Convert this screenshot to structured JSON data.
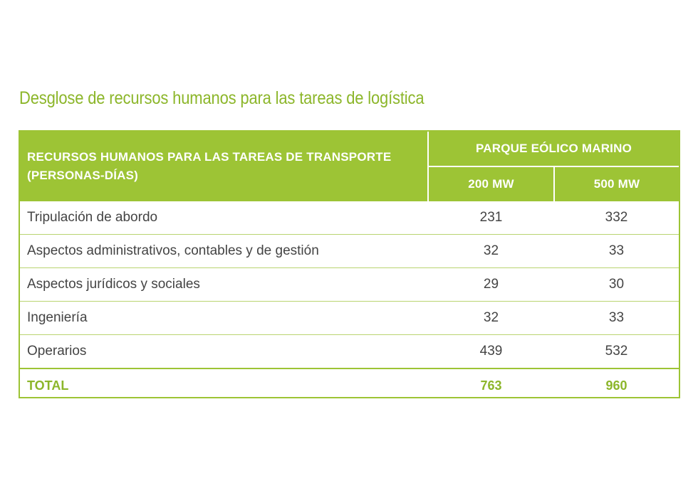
{
  "title": "Desglose de recursos humanos para las tareas de logística",
  "table": {
    "header_label": "RECURSOS HUMANOS PARA LAS TAREAS DE TRANSPORTE (PERSONAS-DÍAS)",
    "group_label": "PARQUE EÓLICO MARINO",
    "columns": [
      "200 MW",
      "500 MW"
    ],
    "rows": [
      {
        "label": "Tripulación de abordo",
        "v200": "231",
        "v500": "332"
      },
      {
        "label": "Aspectos administrativos, contables y de gestión",
        "v200": "32",
        "v500": "33"
      },
      {
        "label": "Aspectos jurídicos y sociales",
        "v200": "29",
        "v500": "30"
      },
      {
        "label": "Ingeniería",
        "v200": "32",
        "v500": "33"
      },
      {
        "label": "Operarios",
        "v200": "439",
        "v500": "532"
      }
    ],
    "total": {
      "label": "TOTAL",
      "v200": "763",
      "v500": "960"
    }
  },
  "colors": {
    "accent": "#9dc435",
    "title": "#8cb62a",
    "text": "#444444"
  }
}
